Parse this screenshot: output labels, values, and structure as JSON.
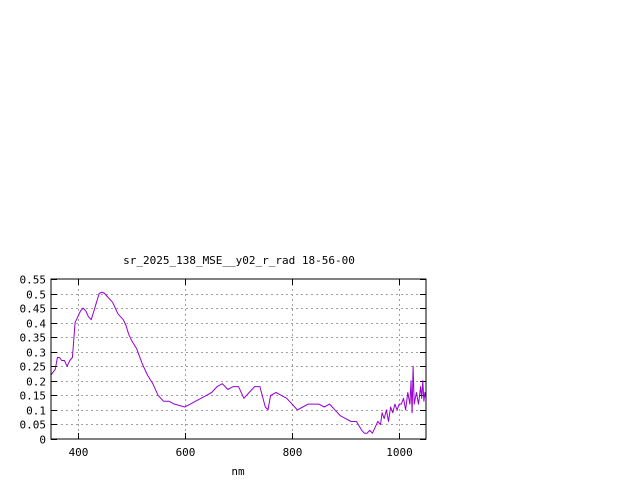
{
  "chart_data": {
    "type": "line",
    "title": "sr_2025_138_MSE__y02_r_rad 18-56-00",
    "xlabel": "nm",
    "ylabel": "",
    "xlim": [
      350,
      1050
    ],
    "ylim": [
      0,
      0.55
    ],
    "grid": true,
    "x_ticks": [
      400,
      600,
      800,
      1000
    ],
    "x_tick_labels": [
      "400",
      "600",
      "800",
      "1000"
    ],
    "y_ticks": [
      0,
      0.05,
      0.1,
      0.15,
      0.2,
      0.25,
      0.3,
      0.35,
      0.4,
      0.45,
      0.5,
      0.55
    ],
    "y_tick_labels": [
      "0",
      "0.05",
      "0.1",
      "0.15",
      "0.2",
      "0.25",
      "0.3",
      "0.35",
      "0.4",
      "0.45",
      "0.5",
      "0.55"
    ],
    "series": [
      {
        "color": "#9400d3",
        "x": [
          350,
          358,
          362,
          366,
          370,
          375,
          380,
          385,
          390,
          395,
          400,
          405,
          410,
          415,
          420,
          425,
          430,
          435,
          440,
          445,
          450,
          455,
          460,
          465,
          470,
          475,
          480,
          485,
          490,
          495,
          500,
          510,
          520,
          530,
          540,
          550,
          560,
          570,
          580,
          590,
          600,
          610,
          620,
          630,
          640,
          650,
          660,
          670,
          680,
          690,
          700,
          710,
          720,
          730,
          740,
          750,
          755,
          760,
          770,
          780,
          790,
          800,
          810,
          820,
          830,
          840,
          850,
          860,
          870,
          875,
          880,
          890,
          900,
          910,
          920,
          930,
          935,
          940,
          945,
          950,
          955,
          960,
          965,
          968,
          972,
          976,
          980,
          984,
          988,
          992,
          996,
          1000,
          1004,
          1008,
          1012,
          1016,
          1020,
          1022,
          1024,
          1026,
          1028,
          1032,
          1036,
          1040,
          1042,
          1044,
          1046,
          1048,
          1050
        ],
        "y": [
          0.22,
          0.24,
          0.28,
          0.28,
          0.27,
          0.27,
          0.25,
          0.27,
          0.28,
          0.4,
          0.42,
          0.44,
          0.45,
          0.44,
          0.42,
          0.41,
          0.44,
          0.47,
          0.5,
          0.505,
          0.5,
          0.49,
          0.48,
          0.47,
          0.45,
          0.43,
          0.42,
          0.41,
          0.39,
          0.36,
          0.34,
          0.31,
          0.26,
          0.22,
          0.19,
          0.15,
          0.13,
          0.13,
          0.12,
          0.115,
          0.11,
          0.12,
          0.13,
          0.14,
          0.15,
          0.16,
          0.18,
          0.19,
          0.17,
          0.18,
          0.18,
          0.14,
          0.16,
          0.18,
          0.18,
          0.11,
          0.1,
          0.15,
          0.16,
          0.15,
          0.14,
          0.12,
          0.1,
          0.11,
          0.12,
          0.12,
          0.12,
          0.11,
          0.12,
          0.11,
          0.1,
          0.08,
          0.07,
          0.06,
          0.06,
          0.03,
          0.02,
          0.02,
          0.03,
          0.02,
          0.04,
          0.06,
          0.05,
          0.09,
          0.07,
          0.1,
          0.06,
          0.11,
          0.09,
          0.12,
          0.1,
          0.12,
          0.12,
          0.14,
          0.1,
          0.16,
          0.12,
          0.2,
          0.09,
          0.25,
          0.12,
          0.16,
          0.12,
          0.18,
          0.14,
          0.2,
          0.13,
          0.16,
          0.14
        ]
      }
    ]
  }
}
